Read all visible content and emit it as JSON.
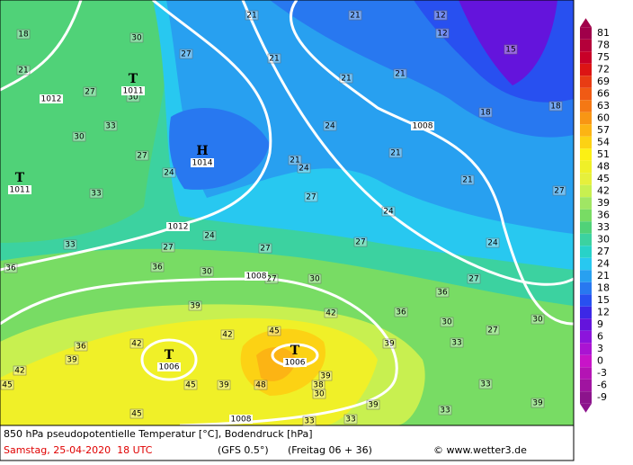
{
  "legend": {
    "ticks": [
      81,
      78,
      75,
      72,
      69,
      66,
      63,
      60,
      57,
      54,
      51,
      48,
      45,
      42,
      39,
      36,
      33,
      30,
      27,
      24,
      21,
      18,
      15,
      12,
      9,
      6,
      3,
      0,
      -3,
      -6,
      -9
    ],
    "colors": [
      "#a0004a",
      "#b4003a",
      "#c80028",
      "#dc1414",
      "#e83c14",
      "#f05a14",
      "#f47814",
      "#f89614",
      "#fcb414",
      "#fcd214",
      "#fcf014",
      "#f0f028",
      "#e6f03c",
      "#c8f050",
      "#a0e664",
      "#78dc64",
      "#50d278",
      "#3cd2a0",
      "#28d2c8",
      "#28c8f0",
      "#28a0f0",
      "#2878f0",
      "#2850f0",
      "#3c28e6",
      "#6414dc",
      "#8c14dc",
      "#aa14d2",
      "#c814c8",
      "#b414b4",
      "#a014a0",
      "#8c148c"
    ]
  },
  "pressure_systems": [
    {
      "symbol": "T",
      "value": 1011
    },
    {
      "symbol": "H",
      "value": 1014
    },
    {
      "symbol": "T",
      "value": 1011
    },
    {
      "symbol": "T",
      "value": 1006
    },
    {
      "symbol": "T",
      "value": 1006
    }
  ],
  "isobar_labels": [
    1012,
    1008,
    1012,
    1008,
    1008
  ],
  "temperature_labels": [
    18,
    30,
    27,
    21,
    21,
    12,
    12,
    15,
    21,
    27,
    30,
    21,
    21,
    21,
    18,
    18,
    33,
    30,
    27,
    24,
    21,
    24,
    24,
    21,
    21,
    27,
    33,
    27,
    24,
    33,
    27,
    24,
    27,
    27,
    24,
    36,
    36,
    30,
    27,
    30,
    36,
    27,
    30,
    39,
    42,
    36,
    30,
    27,
    36,
    42,
    42,
    45,
    39,
    33,
    39,
    42,
    39,
    38,
    45,
    48,
    39,
    30,
    39,
    33,
    33,
    39,
    45,
    45,
    33,
    33
  ],
  "footer": {
    "title": "850 hPa pseudopotentielle Temperatur [°C], Bodendruck [hPa]",
    "date": "Samstag, 25-04-2020  18 UTC",
    "model": "(GFS 0.5°)",
    "run": "(Freitag 06 + 36)",
    "credit": "© www.wetter3.de"
  }
}
